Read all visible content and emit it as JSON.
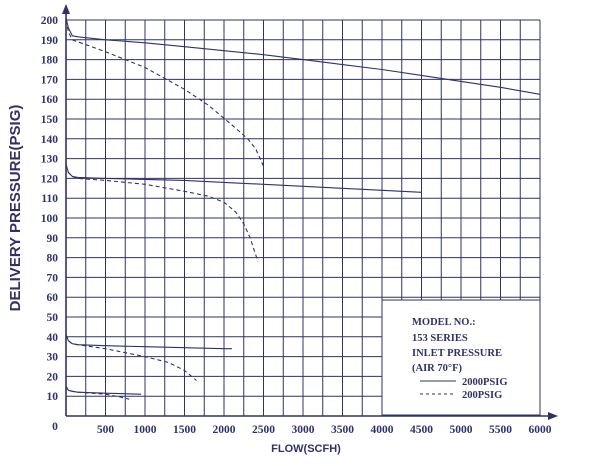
{
  "chart_data": {
    "type": "line",
    "xlabel": "FLOW(SCFH)",
    "ylabel": "DELIVERY PRESSURE(PSIG)",
    "xlim": [
      0,
      6000
    ],
    "ylim": [
      0,
      200
    ],
    "x_ticks": [
      0,
      500,
      1000,
      1500,
      2000,
      2500,
      3000,
      3500,
      4000,
      4500,
      5000,
      5500,
      6000
    ],
    "y_ticks": [
      10,
      20,
      30,
      40,
      50,
      60,
      70,
      80,
      90,
      100,
      110,
      120,
      130,
      140,
      150,
      160,
      170,
      180,
      190,
      200
    ],
    "origin_label": "0",
    "grid": true,
    "legend": {
      "placement": "bottom-right",
      "lines": [
        "MODEL NO.:",
        "153 SERIES",
        "INLET PRESSURE",
        "(AIR 70°F)"
      ],
      "entries": [
        {
          "label": "2000PSIG",
          "style": "solid"
        },
        {
          "label": "200PSIG",
          "style": "dashed"
        }
      ]
    },
    "series": [
      {
        "inlet": "2000PSIG",
        "style": "solid",
        "x": [
          0,
          30,
          80,
          150,
          500,
          1000,
          1500,
          2000,
          2500,
          3000,
          3500,
          4000,
          4500,
          5000,
          5500,
          6000
        ],
        "y": [
          201,
          196,
          192,
          191.5,
          190,
          188.5,
          186.5,
          184.5,
          182.5,
          180,
          177.5,
          175,
          172,
          169,
          166,
          162.5
        ]
      },
      {
        "inlet": "200PSIG",
        "style": "dashed",
        "x": [
          0,
          30,
          80,
          150,
          500,
          1000,
          1500,
          1800,
          2100,
          2300,
          2400,
          2470,
          2500
        ],
        "y": [
          200,
          194,
          190,
          189,
          184,
          176,
          165,
          157,
          147,
          140,
          135,
          129,
          126
        ]
      },
      {
        "inlet": "2000PSIG",
        "style": "solid",
        "x": [
          0,
          30,
          80,
          150,
          500,
          1000,
          1500,
          2000,
          2500,
          3000,
          3500,
          4000,
          4500
        ],
        "y": [
          127,
          123,
          121,
          120.5,
          120,
          119.5,
          119,
          118,
          117,
          116,
          115,
          114,
          113
        ]
      },
      {
        "inlet": "200PSIG",
        "style": "dashed",
        "x": [
          0,
          30,
          80,
          150,
          500,
          1000,
          1500,
          1800,
          2000,
          2150,
          2250,
          2330,
          2380,
          2430
        ],
        "y": [
          127,
          123,
          121,
          120,
          119,
          117,
          113.5,
          111,
          108,
          103,
          97,
          90,
          84,
          78
        ]
      },
      {
        "inlet": "2000PSIG",
        "style": "solid",
        "x": [
          0,
          30,
          80,
          150,
          500,
          1000,
          1500,
          2000,
          2100
        ],
        "y": [
          41,
          38,
          36.5,
          36,
          35.5,
          35,
          34.5,
          34,
          34
        ]
      },
      {
        "inlet": "200PSIG",
        "style": "dashed",
        "x": [
          0,
          30,
          80,
          150,
          500,
          1000,
          1300,
          1500,
          1650
        ],
        "y": [
          41,
          38,
          36.5,
          36,
          34,
          30,
          27,
          23,
          18
        ]
      },
      {
        "inlet": "2000PSIG",
        "style": "solid",
        "x": [
          0,
          30,
          80,
          150,
          500,
          950
        ],
        "y": [
          15,
          13,
          12.5,
          12,
          11.5,
          11
        ]
      },
      {
        "inlet": "200PSIG",
        "style": "dashed",
        "x": [
          0,
          30,
          80,
          150,
          500,
          700,
          800
        ],
        "y": [
          15,
          13,
          12.5,
          12,
          11,
          9.5,
          8.5
        ]
      }
    ]
  }
}
